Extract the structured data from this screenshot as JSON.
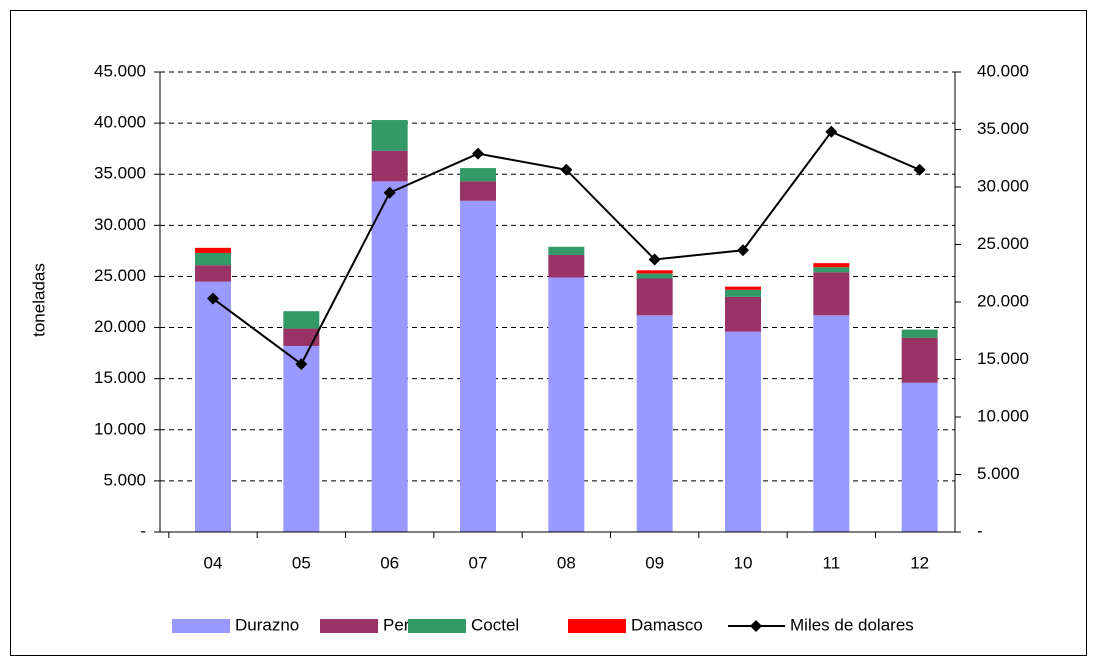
{
  "chart_data": {
    "type": "bar",
    "stacked": true,
    "ylabel": "toneladas",
    "categories": [
      "04",
      "05",
      "06",
      "07",
      "08",
      "09",
      "10",
      "11",
      "12"
    ],
    "series": [
      {
        "name": "Durazno",
        "color": "#9999ff",
        "values": [
          24500,
          18200,
          34300,
          32400,
          24900,
          21200,
          19600,
          21200,
          14600
        ]
      },
      {
        "name": "Pera",
        "color": "#993366",
        "values": [
          1600,
          1700,
          3000,
          1900,
          2200,
          3600,
          3400,
          4200,
          4400
        ]
      },
      {
        "name": "Coctel",
        "color": "#339966",
        "values": [
          1200,
          1700,
          3000,
          1300,
          800,
          500,
          700,
          500,
          800
        ]
      },
      {
        "name": "Damasco",
        "color": "#ff0000",
        "values": [
          500,
          0,
          0,
          0,
          0,
          300,
          300,
          400,
          0
        ]
      },
      {
        "name": "Miles de dolares",
        "color": "#000000",
        "type": "line",
        "axis": "y2",
        "values": [
          20300,
          14600,
          29500,
          32900,
          31500,
          23700,
          24500,
          34800,
          31500
        ]
      }
    ],
    "ylim": [
      0,
      45000
    ],
    "yticks": [
      {
        "value": 0,
        "label": "-"
      },
      {
        "value": 5000,
        "label": "5.000"
      },
      {
        "value": 10000,
        "label": "10.000"
      },
      {
        "value": 15000,
        "label": "15.000"
      },
      {
        "value": 20000,
        "label": "20.000"
      },
      {
        "value": 25000,
        "label": "25.000"
      },
      {
        "value": 30000,
        "label": "30.000"
      },
      {
        "value": 35000,
        "label": "35.000"
      },
      {
        "value": 40000,
        "label": "40.000"
      },
      {
        "value": 45000,
        "label": "45.000"
      }
    ],
    "y2lim": [
      0,
      40000
    ],
    "y2ticks": [
      {
        "value": 0,
        "label": "-"
      },
      {
        "value": 5000,
        "label": "5.000"
      },
      {
        "value": 10000,
        "label": "10.000"
      },
      {
        "value": 15000,
        "label": "15.000"
      },
      {
        "value": 20000,
        "label": "20.000"
      },
      {
        "value": 25000,
        "label": "25.000"
      },
      {
        "value": 30000,
        "label": "30.000"
      },
      {
        "value": 35000,
        "label": "35.000"
      },
      {
        "value": 40000,
        "label": "40.000"
      }
    ],
    "grid": true,
    "legend": "bottom"
  }
}
